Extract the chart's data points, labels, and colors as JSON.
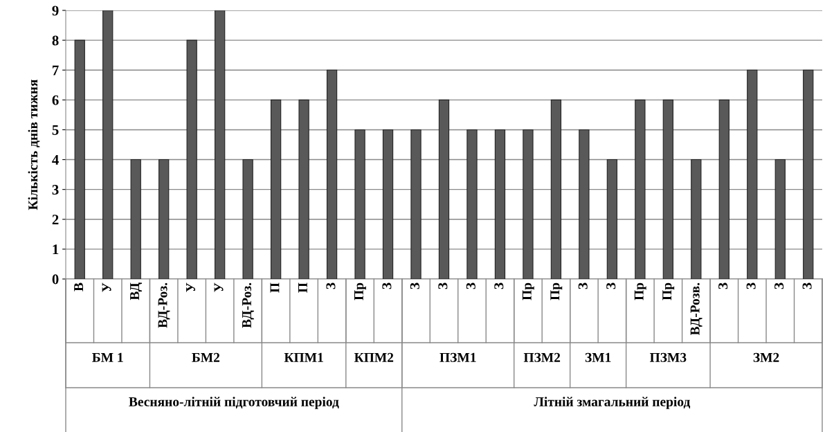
{
  "chart_data": {
    "type": "bar",
    "ylabel": "Кількість днів тижня",
    "categories": [
      "В",
      "У",
      "ВД",
      "ВД-Роз.",
      "У",
      "У",
      "ВД-Роз.",
      "П",
      "П",
      "З",
      "Пр",
      "З",
      "З",
      "З",
      "З",
      "З",
      "Пр",
      "Пр",
      "З",
      "З",
      "Пр",
      "Пр",
      "ВД-Розв.",
      "З",
      "З",
      "З",
      "З"
    ],
    "values": [
      8,
      9,
      4,
      4,
      8,
      9,
      4,
      6,
      6,
      7,
      5,
      5,
      5,
      6,
      5,
      5,
      5,
      6,
      5,
      4,
      6,
      6,
      4,
      6,
      7,
      4,
      7
    ],
    "color": "#595959",
    "annotations": [
      "БМ 1",
      "БМ2",
      "КПМ1",
      "КПМ2",
      "ПЗМ1",
      "ПЗМ2",
      "ЗМ1",
      "ПЗМ3",
      "ЗМ2",
      "Весняно-літній підготовчий період",
      "Літній змагальний період"
    ],
    "ylim": [
      0,
      9
    ],
    "yticks": [
      0,
      1,
      2,
      3,
      4,
      5,
      6,
      7,
      8,
      9
    ],
    "grid": "y",
    "legend": false
  }
}
